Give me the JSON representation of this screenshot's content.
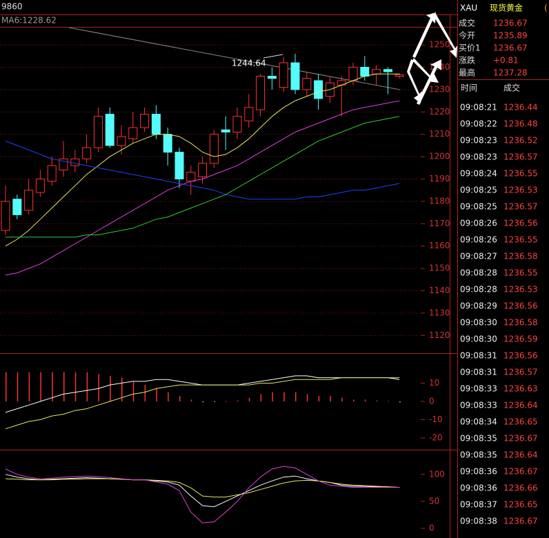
{
  "chart_data": [
    {
      "type": "candlestick",
      "title": "9860",
      "label": "MA6:1228.62",
      "annotation": "1244.64",
      "up_color": "#ff3232",
      "down_color": "#54fcfc",
      "grid": true,
      "ylim": [
        1112.7,
        1263.3
      ],
      "yticks": [
        1120,
        1130,
        1140,
        1150,
        1160,
        1170,
        1180,
        1190,
        1200,
        1210,
        1220,
        1230,
        1240,
        1250
      ],
      "open": [
        1167,
        1181,
        1176,
        1184,
        1189,
        1194,
        1196,
        1199,
        1204,
        1219,
        1205,
        1208,
        1213,
        1219,
        1210,
        1202,
        1189,
        1191,
        1197,
        1212,
        1211,
        1216,
        1221,
        1236,
        1231,
        1242,
        1230,
        1234,
        1227,
        1232,
        1234,
        1240,
        1237,
        1239,
        1236
      ],
      "high": [
        1187,
        1183,
        1190,
        1194,
        1200,
        1207,
        1203,
        1210,
        1222,
        1222,
        1214,
        1220,
        1222,
        1223,
        1213,
        1204,
        1196,
        1200,
        1212,
        1218,
        1222,
        1228,
        1237,
        1240,
        1244.64,
        1246,
        1238,
        1237,
        1236,
        1236,
        1242,
        1245,
        1241,
        1240,
        1237.28
      ],
      "low": [
        1165,
        1172,
        1174,
        1182,
        1187,
        1191,
        1193,
        1197,
        1202,
        1204,
        1201,
        1206,
        1211,
        1208,
        1196,
        1186,
        1183,
        1188,
        1195,
        1203,
        1208,
        1213,
        1218,
        1230,
        1229,
        1228,
        1227,
        1221,
        1224,
        1218,
        1232,
        1234,
        1232,
        1228,
        1235
      ],
      "close": [
        1180,
        1174,
        1185,
        1190,
        1196,
        1199,
        1199,
        1204,
        1218,
        1205,
        1209,
        1213,
        1219,
        1210,
        1202,
        1190,
        1193,
        1197,
        1210,
        1211,
        1218,
        1222,
        1236,
        1235,
        1242,
        1230,
        1235,
        1226,
        1233,
        1234,
        1240,
        1236,
        1239,
        1238,
        1236.67
      ],
      "series": [
        {
          "color": "#e8e860",
          "values": [
            1160,
            1163,
            1167,
            1172,
            1177,
            1182,
            1187,
            1192,
            1196,
            1200,
            1203,
            1206,
            1208,
            1210,
            1210,
            1209,
            1206,
            1202,
            1200,
            1201,
            1204,
            1208,
            1213,
            1218,
            1222,
            1225,
            1227,
            1229,
            1230,
            1232,
            1234,
            1236,
            1237,
            1237,
            1237
          ]
        },
        {
          "color": "#e040e0",
          "values": [
            1147,
            1148,
            1150,
            1152,
            1155,
            1158,
            1161,
            1164,
            1167,
            1170,
            1173,
            1176,
            1179,
            1182,
            1185,
            1187,
            1189,
            1190,
            1192,
            1194,
            1196,
            1199,
            1202,
            1205,
            1208,
            1211,
            1213,
            1215,
            1217,
            1219,
            1221,
            1222,
            1223,
            1224,
            1225
          ]
        },
        {
          "color": "#2040ff",
          "values": [
            1207,
            1205,
            1203,
            1201,
            1199,
            1198,
            1197,
            1196,
            1195,
            1194,
            1193,
            1192,
            1191,
            1190,
            1189,
            1188,
            1187,
            1186,
            1185,
            1183,
            1182,
            1181,
            1181,
            1181,
            1181,
            1181,
            1182,
            1182,
            1183,
            1184,
            1185,
            1185,
            1186,
            1187,
            1188
          ]
        },
        {
          "color": "#30d030",
          "values": [
            1164,
            1164,
            1164,
            1164,
            1164,
            1164,
            1164,
            1165,
            1165,
            1166,
            1167,
            1168,
            1170,
            1172,
            1173,
            1175,
            1177,
            1179,
            1181,
            1183,
            1186,
            1189,
            1192,
            1195,
            1198,
            1201,
            1204,
            1207,
            1209,
            1211,
            1213,
            1215,
            1216,
            1217,
            1218
          ]
        }
      ]
    },
    {
      "type": "bar",
      "color": "#ff3232",
      "negative_color": "#dddddd",
      "grid": false,
      "ylim": [
        -25.7,
        25.3
      ],
      "yticks": [
        10,
        0,
        -10,
        -20
      ],
      "values": [
        16,
        16,
        16,
        16,
        16,
        16,
        16,
        16,
        15,
        14,
        13,
        11,
        9,
        7,
        5,
        3,
        1,
        -0.5,
        -0.3,
        0.2,
        0.5,
        2,
        4,
        5,
        5,
        5,
        4,
        3,
        3,
        2,
        1,
        1,
        0.5,
        0.3,
        -0.5
      ],
      "series": [
        {
          "color": "#ffffff",
          "values": [
            -6,
            -4,
            -2,
            0,
            2,
            4,
            5,
            6,
            7,
            9,
            10,
            11,
            11,
            12,
            12,
            11,
            10,
            9,
            9,
            9,
            9,
            10,
            11,
            12,
            13,
            14,
            14,
            13,
            13,
            13,
            13,
            13,
            13,
            13,
            12
          ]
        },
        {
          "color": "#e8e860",
          "values": [
            -15,
            -13,
            -11,
            -10,
            -8,
            -7,
            -5,
            -4,
            -2,
            0,
            2,
            4,
            5,
            7,
            8,
            9,
            9,
            9,
            9,
            9,
            9,
            9,
            10,
            10,
            11,
            12,
            12,
            12,
            12,
            13,
            13,
            13,
            13,
            13,
            13
          ]
        }
      ]
    },
    {
      "type": "line",
      "grid": false,
      "ylim": [
        -18,
        142
      ],
      "yticks": [
        100,
        50,
        0
      ],
      "series": [
        {
          "color": "#ffffff",
          "values": [
            100,
            95,
            92,
            90,
            91,
            92,
            93,
            94,
            93,
            92,
            91,
            90,
            90,
            88,
            86,
            80,
            60,
            42,
            40,
            50,
            60,
            70,
            80,
            88,
            95,
            97,
            92,
            88,
            85,
            80,
            78,
            78,
            77,
            77,
            76
          ]
        },
        {
          "color": "#e8e860",
          "values": [
            92,
            91,
            90,
            90,
            90,
            91,
            91,
            92,
            92,
            92,
            91,
            90,
            90,
            89,
            88,
            85,
            75,
            60,
            58,
            58,
            62,
            66,
            72,
            78,
            84,
            88,
            89,
            88,
            85,
            82,
            80,
            79,
            78,
            77,
            76
          ]
        },
        {
          "color": "#e040e0",
          "values": [
            110,
            100,
            95,
            92,
            93,
            95,
            96,
            97,
            96,
            94,
            92,
            90,
            90,
            86,
            82,
            70,
            30,
            10,
            12,
            30,
            50,
            75,
            95,
            110,
            115,
            112,
            100,
            88,
            80,
            78,
            76,
            76,
            76,
            76,
            76
          ]
        }
      ]
    }
  ],
  "header": {
    "code": "XAU",
    "name": "现货黄金",
    "extra": "("
  },
  "quotes": [
    [
      "成交",
      "1236.67"
    ],
    [
      "今开",
      "1235.89"
    ],
    [
      "买价1",
      "1236.67"
    ],
    [
      "涨跌",
      "+0.81"
    ],
    [
      "最高",
      "1237.28"
    ]
  ],
  "trades": {
    "columns": [
      "时间",
      "成交"
    ],
    "rows": [
      [
        "09:08:21",
        "1236.44"
      ],
      [
        "09:08:22",
        "1236.48"
      ],
      [
        "09:08:23",
        "1236.52"
      ],
      [
        "09:08:23",
        "1236.57"
      ],
      [
        "09:08:24",
        "1236.55"
      ],
      [
        "09:08:25",
        "1236.53"
      ],
      [
        "09:08:25",
        "1236.57"
      ],
      [
        "09:08:26",
        "1236.56"
      ],
      [
        "09:08:26",
        "1236.55"
      ],
      [
        "09:08:27",
        "1236.58"
      ],
      [
        "09:08:28",
        "1236.55"
      ],
      [
        "09:08:28",
        "1236.53"
      ],
      [
        "09:08:29",
        "1236.56"
      ],
      [
        "09:08:30",
        "1236.58"
      ],
      [
        "09:08:30",
        "1236.59"
      ],
      [
        "09:08:31",
        "1236.56"
      ],
      [
        "09:08:31",
        "1236.57"
      ],
      [
        "09:08:33",
        "1236.63"
      ],
      [
        "09:08:33",
        "1236.64"
      ],
      [
        "09:08:34",
        "1236.65"
      ],
      [
        "09:08:35",
        "1236.67"
      ],
      [
        "09:08:35",
        "1236.64"
      ],
      [
        "09:08:36",
        "1236.67"
      ],
      [
        "09:08:36",
        "1236.66"
      ],
      [
        "09:08:37",
        "1236.65"
      ],
      [
        "09:08:38",
        "1236.67"
      ]
    ]
  }
}
